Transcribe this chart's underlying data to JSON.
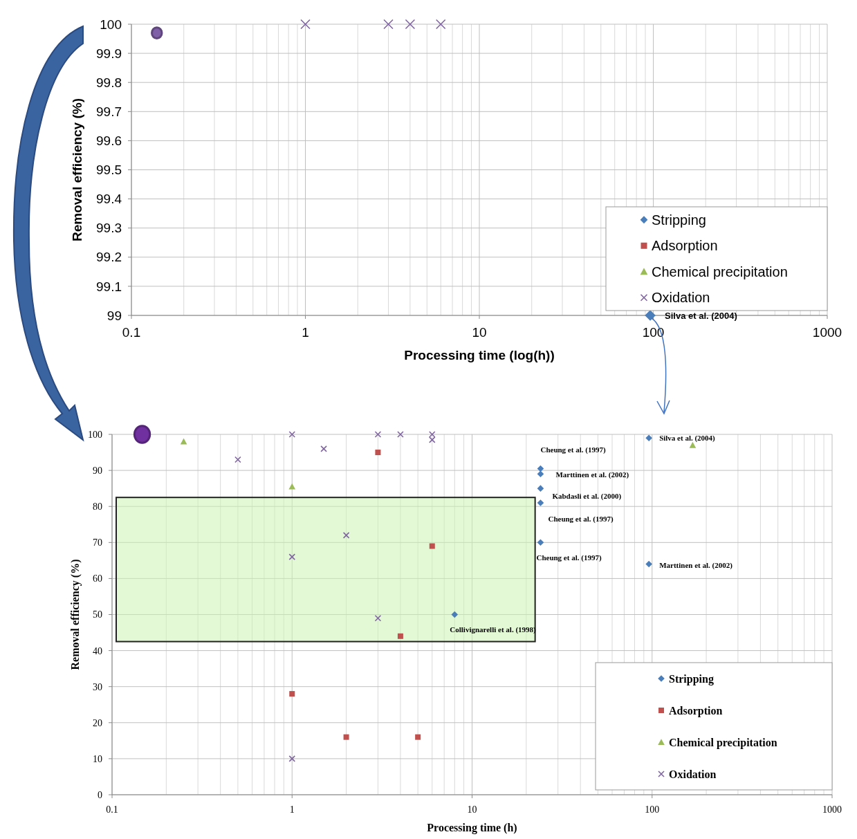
{
  "chart_data": [
    {
      "type": "scatter",
      "xlabel": "Processing time (log(h))",
      "ylabel": "Removal efficiency (%)",
      "log": "x",
      "xlim": [
        0.1,
        1000
      ],
      "xticks": [
        0.1,
        1,
        10,
        100,
        1000
      ],
      "ylim": [
        99,
        100
      ],
      "yticks": [
        99,
        99.1,
        99.2,
        99.3,
        99.4,
        99.5,
        99.6,
        99.7,
        99.8,
        99.9,
        100
      ],
      "grid": true,
      "legend": "bottom right",
      "series": [
        {
          "name": "Stripping",
          "color": "#4a7ebb",
          "marker": "diamond",
          "x": [
            96
          ],
          "values": [
            99
          ]
        },
        {
          "name": "Adsorption",
          "color": "#c0504d",
          "marker": "square"
        },
        {
          "name": "Chemical precipitation",
          "color": "#9bbb59",
          "marker": "triangle"
        },
        {
          "name": "Oxidation",
          "color": "#8064a2",
          "marker": "cross",
          "x": [
            1,
            3,
            4,
            6
          ],
          "values": [
            100,
            100,
            100,
            100
          ]
        },
        {
          "color": "#7f5fa8",
          "marker": "circle",
          "x": [
            0.14
          ],
          "values": [
            99.97
          ]
        }
      ],
      "annotations": [
        {
          "text": "Silva et al. (2004)",
          "x": 96,
          "y": 99
        }
      ]
    },
    {
      "type": "scatter",
      "xlabel": "Processing time (h)",
      "ylabel": "Removal efficiency (%)",
      "log": "x",
      "xlim": [
        0.1,
        1000
      ],
      "xticks": [
        0.1,
        1,
        10,
        100,
        1000
      ],
      "ylim": [
        0,
        100
      ],
      "yticks": [
        0,
        10,
        20,
        30,
        40,
        50,
        60,
        70,
        80,
        90,
        100
      ],
      "grid": true,
      "legend": "bottom right",
      "series": [
        {
          "name": "Stripping",
          "color": "#4a7ebb",
          "marker": "diamond",
          "x": [
            24,
            24,
            24,
            24,
            24,
            8,
            96,
            96
          ],
          "values": [
            90.5,
            89,
            85,
            81,
            70,
            50,
            99,
            64
          ]
        },
        {
          "name": "Adsorption",
          "color": "#c0504d",
          "marker": "square",
          "x": [
            3,
            6,
            4,
            1,
            2,
            5
          ],
          "values": [
            95,
            69,
            44,
            28,
            16,
            16
          ]
        },
        {
          "name": "Chemical precipitation",
          "color": "#9bbb59",
          "marker": "triangle",
          "x": [
            0.25,
            1,
            168
          ],
          "values": [
            98,
            85.5,
            97
          ]
        },
        {
          "name": "Oxidation",
          "color": "#8064a2",
          "marker": "cross",
          "x": [
            0.5,
            1,
            1.5,
            3,
            4,
            6,
            6,
            1,
            2,
            3,
            1
          ],
          "values": [
            93,
            100,
            96,
            100,
            100,
            100,
            98.5,
            66,
            72,
            49,
            10
          ]
        },
        {
          "color": "#7030a0",
          "marker": "circle",
          "x": [
            0.147
          ],
          "values": [
            100
          ]
        }
      ],
      "annotations": [
        {
          "text": "Cheung et al. (1997)",
          "x": 24,
          "y": 90.5
        },
        {
          "text": "Marttinen et al. (2002)",
          "x": 24,
          "y": 89
        },
        {
          "text": "Kabdasli et al. (2000)",
          "x": 24,
          "y": 85
        },
        {
          "text": "Cheung et al. (1997)",
          "x": 24,
          "y": 81
        },
        {
          "text": "Cheung et al. (1997)",
          "x": 24,
          "y": 70
        },
        {
          "text": "Marttinen et al. (2002)",
          "x": 96,
          "y": 64
        },
        {
          "text": "Silva et al. (2004)",
          "x": 96,
          "y": 99
        },
        {
          "text": "Collivignarelli et al. (1998)",
          "x": 8,
          "y": 50
        }
      ]
    }
  ]
}
